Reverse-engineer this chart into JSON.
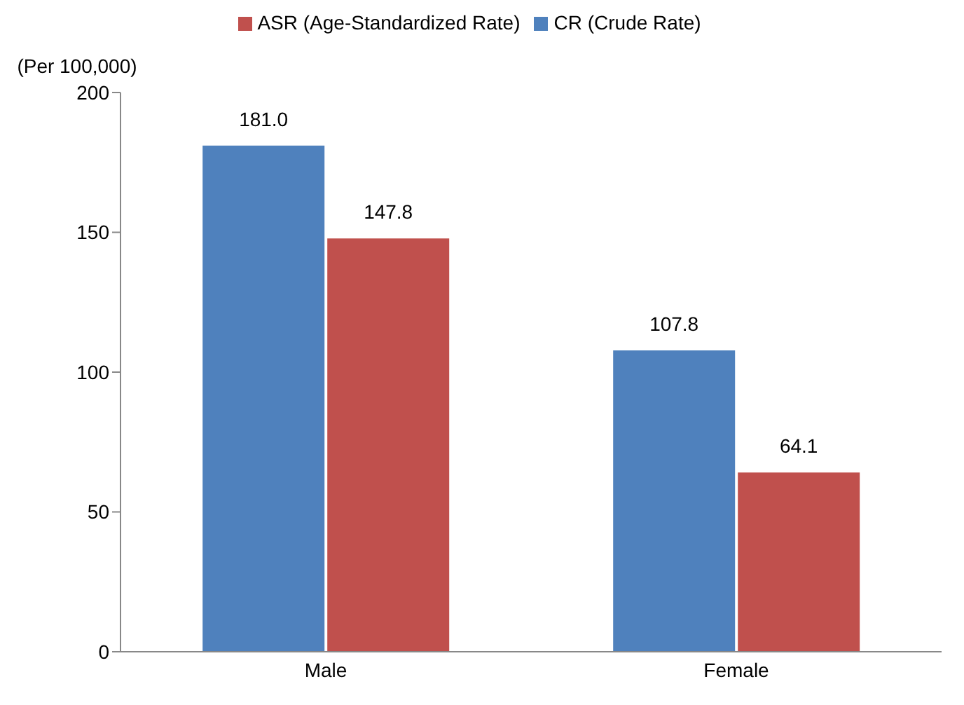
{
  "chart_data": {
    "type": "bar",
    "ylabel": "(Per 100,000)",
    "categories": [
      "Male",
      "Female"
    ],
    "series": [
      {
        "name": "CR (Crude Rate)",
        "color": "#4f81bd",
        "values": [
          181.0,
          107.8
        ],
        "value_labels": [
          "181.0",
          "107.8"
        ]
      },
      {
        "name": "ASR (Age-Standardized Rate)",
        "color": "#c0504d",
        "values": [
          147.8,
          64.1
        ],
        "value_labels": [
          "147.8",
          "64.1"
        ]
      }
    ],
    "ylim": [
      0,
      200
    ],
    "yticks": [
      0,
      50,
      100,
      150,
      200
    ],
    "grid": false,
    "legend": "top"
  }
}
